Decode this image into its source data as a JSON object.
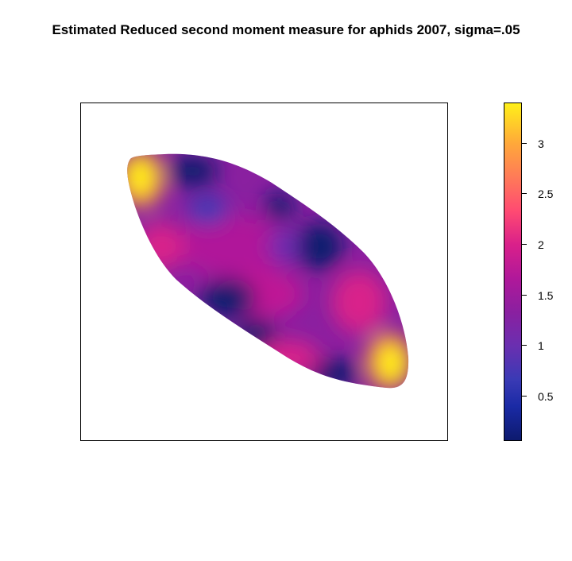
{
  "chart_data": {
    "type": "heatmap",
    "title": "Estimated Reduced second moment measure for aphids 2007, sigma=.05",
    "xlabel": "",
    "ylabel": "",
    "colorbar": {
      "range": [
        0.05,
        3.4
      ],
      "ticks": [
        0.5,
        1,
        1.5,
        2,
        2.5,
        3
      ],
      "tick_labels": [
        "0.5",
        "1",
        "1.5",
        "2",
        "2.5",
        "3"
      ],
      "colors": [
        "#0d1a6e",
        "#3a3ab5",
        "#8a20a0",
        "#d9208a",
        "#ff7a58",
        "#fff019"
      ]
    },
    "window_shape": "elongated oval running from upper-left to lower-right",
    "hotspots": [
      {
        "location": "upper-left tip",
        "value": 3.2
      },
      {
        "location": "lower-right tip",
        "value": 3.1
      },
      {
        "location": "top near upper-left",
        "value": 0.3
      },
      {
        "location": "upper-right edge center",
        "value": 0.3
      },
      {
        "location": "lower-left edge center",
        "value": 0.3
      },
      {
        "location": "bottom near lower-right",
        "value": 0.3
      },
      {
        "location": "center",
        "value": 1.4
      },
      {
        "location": "left interior",
        "value": 1.8
      },
      {
        "location": "right interior",
        "value": 1.6
      }
    ]
  }
}
